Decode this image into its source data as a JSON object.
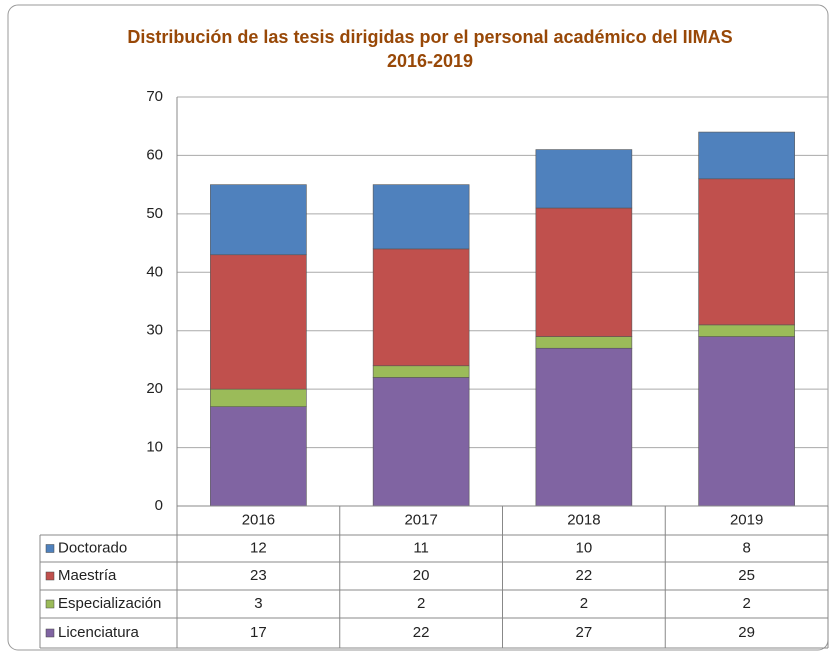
{
  "chart_data": {
    "type": "bar",
    "stacked": true,
    "title": [
      "Distribución de las tesis dirigidas por el personal académico del IIMAS",
      "2016-2019"
    ],
    "categories": [
      "2016",
      "2017",
      "2018",
      "2019"
    ],
    "series": [
      {
        "name": "Licenciatura",
        "color": "#8064a2",
        "values": [
          17,
          22,
          27,
          29
        ]
      },
      {
        "name": "Especialización",
        "color": "#9bbb59",
        "values": [
          3,
          2,
          2,
          2
        ]
      },
      {
        "name": "Maestría",
        "color": "#c0504d",
        "values": [
          23,
          20,
          22,
          25
        ]
      },
      {
        "name": "Doctorado",
        "color": "#4f81bd",
        "values": [
          12,
          11,
          10,
          8
        ]
      }
    ],
    "ylim": [
      0,
      70
    ],
    "yticks": [
      0,
      10,
      20,
      30,
      40,
      50,
      60,
      70
    ],
    "grid": true
  }
}
